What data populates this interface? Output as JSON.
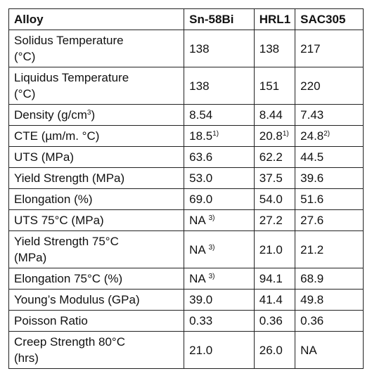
{
  "table": {
    "header": [
      "Alloy",
      "Sn-58Bi",
      "HRL1",
      "SAC305"
    ],
    "rows": [
      [
        "Solidus Temperature (°C)",
        "138",
        "138",
        "217"
      ],
      [
        "Liquidus Temperature (°C)",
        "138",
        "151",
        "220"
      ],
      [
        {
          "text": "Density (g/cm",
          "sup": "3",
          "tail": ")"
        },
        "8.54",
        "8.44",
        "7.43"
      ],
      [
        "CTE (µm/m. °C)",
        {
          "text": "18.5",
          "sup": "1)"
        },
        {
          "text": "20.8",
          "sup": "1)"
        },
        {
          "text": "24.8",
          "sup": "2)"
        }
      ],
      [
        "UTS (MPa)",
        "63.6",
        "62.2",
        "44.5"
      ],
      [
        "Yield Strength (MPa)",
        "53.0",
        "37.5",
        "39.6"
      ],
      [
        "Elongation (%)",
        "69.0",
        "54.0",
        "51.6"
      ],
      [
        "UTS 75°C (MPa)",
        {
          "text": "NA ",
          "sup": "3)"
        },
        "27.2",
        "27.6"
      ],
      [
        "Yield Strength 75°C (MPa)",
        {
          "text": "NA ",
          "sup": "3)"
        },
        "21.0",
        "21.2"
      ],
      [
        "Elongation 75°C (%)",
        {
          "text": "NA ",
          "sup": "3)"
        },
        "94.1",
        "68.9"
      ],
      [
        "Young’s Modulus (GPa)",
        "39.0",
        "41.4",
        "49.8"
      ],
      [
        "Poisson Ratio",
        "0.33",
        "0.36",
        "0.36"
      ],
      [
        "Creep Strength 80°C (hrs)",
        "21.0",
        "26.0",
        "NA"
      ]
    ]
  }
}
